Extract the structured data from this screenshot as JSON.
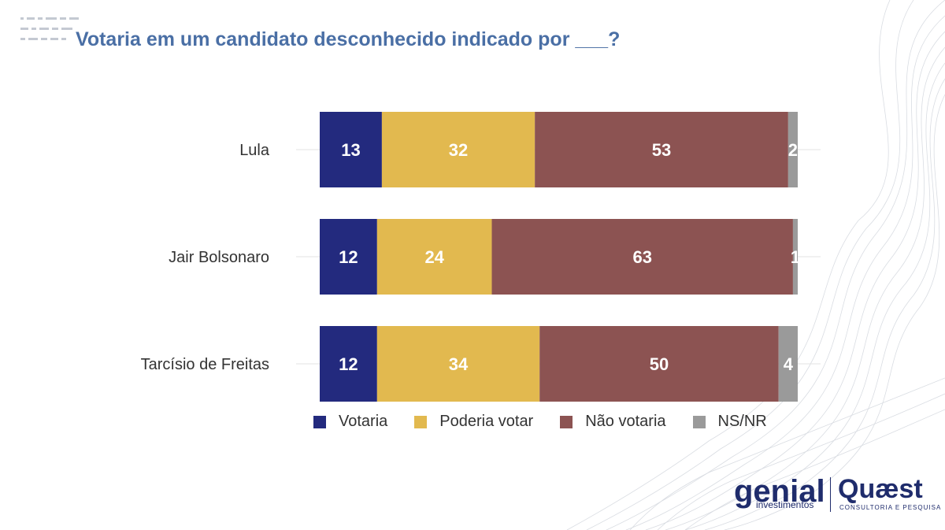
{
  "title": "Votaria em um candidato desconhecido indicado por ___?",
  "chart_data": {
    "type": "bar",
    "orientation": "horizontal",
    "stacked": true,
    "title": "Votaria em um candidato desconhecido indicado por ___?",
    "categories": [
      "Lula",
      "Jair Bolsonaro",
      "Tarcísio de Freitas"
    ],
    "series": [
      {
        "name": "Votaria",
        "color": "#232a7e",
        "values": [
          13,
          12,
          12
        ]
      },
      {
        "name": "Poderia votar",
        "color": "#e2b94f",
        "values": [
          32,
          24,
          34
        ]
      },
      {
        "name": "Não votaria",
        "color": "#8c5352",
        "values": [
          53,
          63,
          50
        ]
      },
      {
        "name": "NS/NR",
        "color": "#9a9a9a",
        "values": [
          2,
          1,
          4
        ]
      }
    ],
    "xlim": [
      0,
      100
    ],
    "legend": "bottom"
  },
  "legend": [
    {
      "label": "Votaria",
      "color": "#232a7e"
    },
    {
      "label": "Poderia votar",
      "color": "#e2b94f"
    },
    {
      "label": "Não votaria",
      "color": "#8c5352"
    },
    {
      "label": "NS/NR",
      "color": "#9a9a9a"
    }
  ],
  "logos": {
    "genial": {
      "word": "genial",
      "sub": "investimentos"
    },
    "quaest": {
      "word": "Quæst",
      "sub": "CONSULTORIA E PESQUISA"
    }
  },
  "colors": {
    "title": "#4a6fa5",
    "brand": "#1f2c6c"
  }
}
